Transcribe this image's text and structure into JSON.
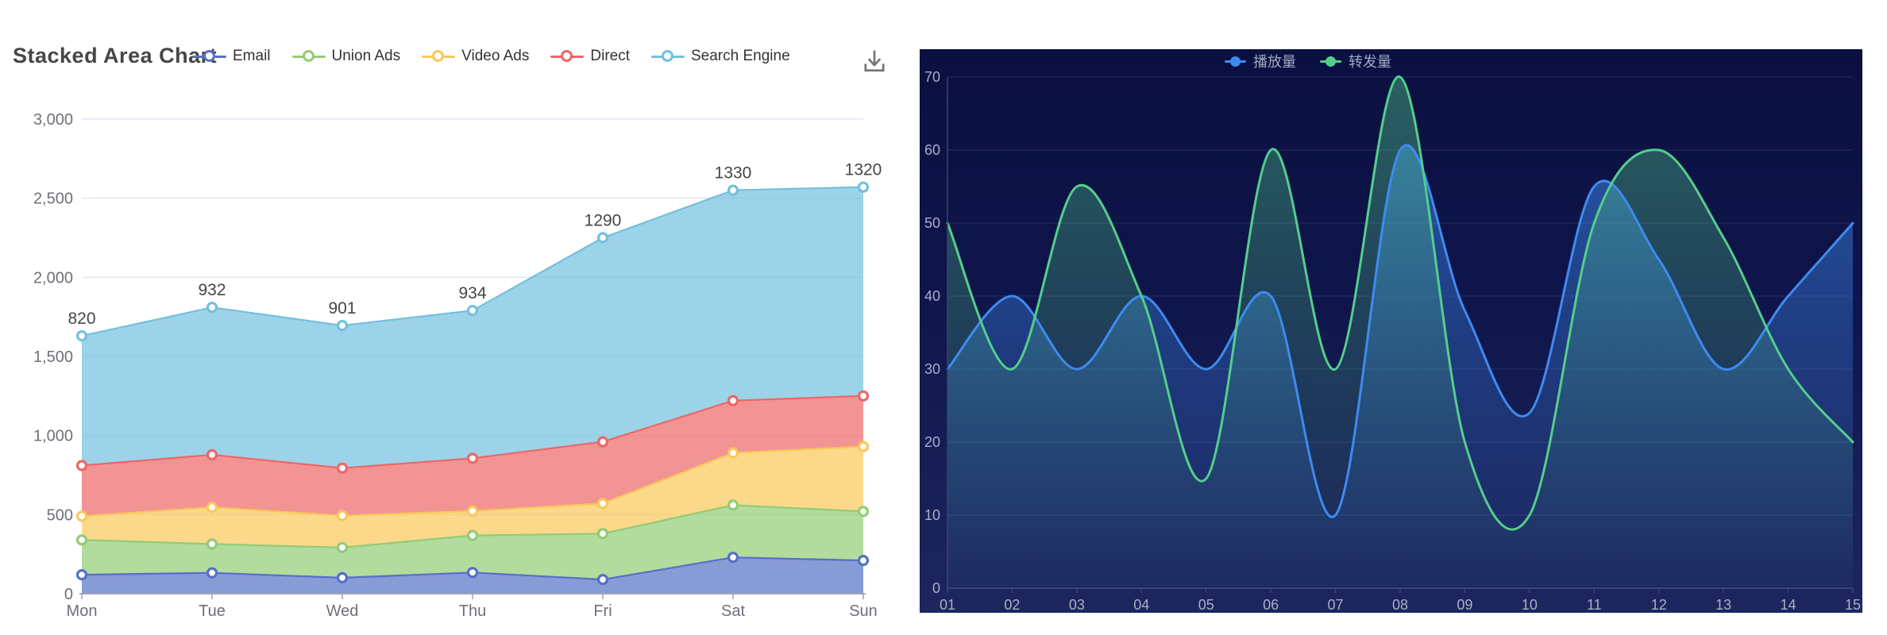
{
  "left_chart": {
    "title": "Stacked Area Chart",
    "legend_items": [
      {
        "label": "Email",
        "color": "#5470C6"
      },
      {
        "label": "Union Ads",
        "color": "#91CC75"
      },
      {
        "label": "Video Ads",
        "color": "#FAC858"
      },
      {
        "label": "Direct",
        "color": "#EE6666"
      },
      {
        "label": "Search Engine",
        "color": "#73C0DE"
      }
    ],
    "toolbox": {
      "save_as_image_icon": "download-icon"
    },
    "y_axis_labels": [
      "3,000",
      "2,500",
      "2,000",
      "1,500",
      "1,000",
      "500",
      "0"
    ],
    "x_axis_labels": [
      "Mon",
      "Tue",
      "Wed",
      "Thu",
      "Fri",
      "Sat",
      "Sun"
    ],
    "point_value_labels": [
      "820",
      "932",
      "901",
      "934",
      "1290",
      "1330",
      "1320"
    ]
  },
  "right_chart": {
    "legend_items": [
      {
        "label": "播放量",
        "color": "#3E8BF0"
      },
      {
        "label": "转发量",
        "color": "#54CE8B"
      }
    ],
    "y_axis_labels": [
      "0",
      "10",
      "20",
      "30",
      "40",
      "50",
      "60",
      "70"
    ],
    "x_axis_labels": [
      "01",
      "02",
      "03",
      "04",
      "05",
      "06",
      "07",
      "08",
      "09",
      "10",
      "11",
      "12",
      "13",
      "14",
      "15"
    ]
  },
  "theme": {
    "left_grid_color": "#E0E6F1",
    "left_axis_color": "#9AA1AD",
    "left_axis_label_color": "#6E7079",
    "left_value_label_color": "#454545",
    "title_color": "#464646",
    "toolbox_icon_color": "#757575",
    "panel_bg_top": "#0B1041",
    "panel_bg_bottom": "#1D265F",
    "right_grid_color": "rgba(173,184,230,0.16)",
    "right_axis_color": "#3A4374",
    "right_axis_label_color": "#A9AECB"
  },
  "chart_data": [
    {
      "type": "area",
      "stacked": true,
      "title": "Stacked Area Chart",
      "categories": [
        "Mon",
        "Tue",
        "Wed",
        "Thu",
        "Fri",
        "Sat",
        "Sun"
      ],
      "series": [
        {
          "name": "Email",
          "color": "#5470C6",
          "values": [
            120,
            132,
            101,
            134,
            90,
            230,
            210
          ]
        },
        {
          "name": "Union Ads",
          "color": "#91CC75",
          "values": [
            220,
            182,
            191,
            234,
            290,
            330,
            310
          ]
        },
        {
          "name": "Video Ads",
          "color": "#FAC858",
          "values": [
            150,
            232,
            201,
            154,
            190,
            330,
            410
          ]
        },
        {
          "name": "Direct",
          "color": "#EE6666",
          "values": [
            320,
            332,
            301,
            334,
            390,
            330,
            320
          ]
        },
        {
          "name": "Search Engine",
          "color": "#73C0DE",
          "values": [
            820,
            932,
            901,
            934,
            1290,
            1330,
            1320
          ],
          "show_labels": true
        }
      ],
      "stacked_totals": [
        1630,
        1810,
        1695,
        1790,
        2250,
        2550,
        2570
      ],
      "ylim": [
        0,
        3000
      ],
      "y_ticks": [
        0,
        500,
        1000,
        1500,
        2000,
        2500,
        3000
      ],
      "grid": true,
      "area_opacity": 0.7,
      "legend_position": "top"
    },
    {
      "type": "line",
      "smooth": true,
      "background": "dark-navy-gradient",
      "x": [
        "01",
        "02",
        "03",
        "04",
        "05",
        "06",
        "07",
        "08",
        "09",
        "10",
        "11",
        "12",
        "13",
        "14",
        "15"
      ],
      "series": [
        {
          "name": "播放量",
          "color": "#3E8BF0",
          "values": [
            30,
            40,
            30,
            40,
            30,
            40,
            10,
            60,
            38,
            24,
            55,
            45,
            30,
            40,
            50
          ]
        },
        {
          "name": "转发量",
          "color": "#54CE8B",
          "values": [
            50,
            30,
            55,
            40,
            15,
            60,
            30,
            70,
            20,
            10,
            50,
            60,
            48,
            30,
            20
          ]
        }
      ],
      "ylim": [
        0,
        70
      ],
      "y_ticks": [
        0,
        10,
        20,
        30,
        40,
        50,
        60,
        70
      ],
      "grid": true,
      "area_fill": "vertical-gradient-fade",
      "legend_position": "top"
    }
  ]
}
